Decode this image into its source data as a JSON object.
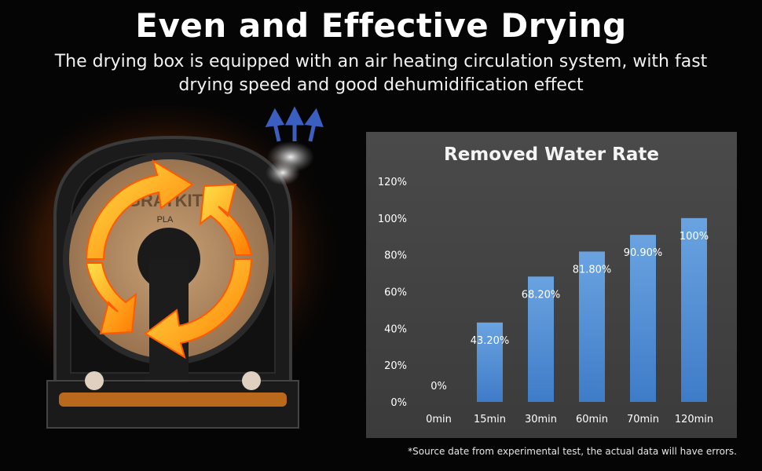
{
  "header": {
    "title": "Even and Effective Drying",
    "subtitle_line1": "The drying box is equipped with an air heating circulation system, with fast",
    "subtitle_line2": "drying speed and good dehumidification effect"
  },
  "product": {
    "brand_label": "GRATKIT",
    "material_label": "PLA",
    "icons": [
      "spool-icon",
      "circulation-arrows-icon",
      "steam-icon",
      "airflow-arrows-icon"
    ]
  },
  "chart_data": {
    "type": "bar",
    "title": "Removed Water Rate",
    "categories": [
      "0min",
      "15min",
      "30min",
      "60min",
      "70min",
      "120min"
    ],
    "values": [
      0,
      43.2,
      68.2,
      81.8,
      90.9,
      100
    ],
    "data_labels": [
      "0%",
      "43.20%",
      "68.20%",
      "81.80%",
      "90.90%",
      "100%"
    ],
    "y_ticks": [
      "0%",
      "20%",
      "40%",
      "60%",
      "80%",
      "100%",
      "120%"
    ],
    "ylim": [
      0,
      120
    ],
    "grid": false,
    "colors": {
      "bar_top": "#6aa3e0",
      "bar_bottom": "#3f7cc8",
      "panel": "#454545",
      "text": "#ffffff"
    }
  },
  "footnote": "*Source date from experimental test, the actual data will have errors."
}
